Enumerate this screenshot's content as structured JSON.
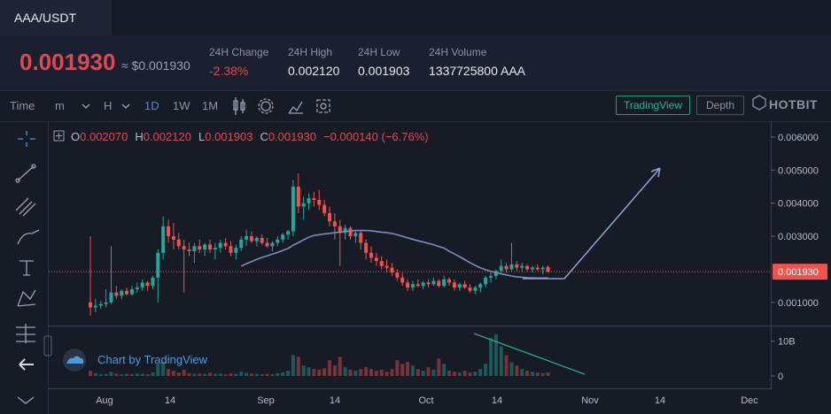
{
  "tab": "AAA/USDT",
  "ticker": {
    "last": "0.001930",
    "usd": "≈ $0.001930"
  },
  "stats": [
    {
      "label": "24H Change",
      "value": "-2.38%"
    },
    {
      "label": "24H High",
      "value": "0.002120"
    },
    {
      "label": "24H Low",
      "value": "0.001903"
    },
    {
      "label": "24H Volume",
      "value": "1337725800 AAA"
    }
  ],
  "toolbar": {
    "items": [
      "Time",
      "m",
      "H",
      "1D",
      "1W",
      "1M"
    ],
    "buttons": [
      "TradingView",
      "Depth"
    ],
    "logo": "HOTBIT"
  },
  "legend": [
    {
      "label": "O",
      "value": "0.002070"
    },
    {
      "label": "H",
      "value": "0.002120"
    },
    {
      "label": "L",
      "value": "0.001903"
    },
    {
      "label": "C",
      "value": "0.001930"
    },
    {
      "label": "",
      "value": "−0.000140 (−6.76%)"
    }
  ],
  "watermark": "Chart by TradingView",
  "chart_data": {
    "type": "candlestick",
    "up_color": "#26a69a",
    "down_color": "#ef5350",
    "x_labels": [
      "Aug",
      "14",
      "Sep",
      "14",
      "Oct",
      "14",
      "Nov",
      "14",
      "Dec"
    ],
    "ylim": [
      0.0003,
      0.0064
    ],
    "yticks": [
      {
        "value": 0.001,
        "label": "0.001000"
      },
      {
        "value": 0.003,
        "label": "0.003000"
      },
      {
        "value": 0.004,
        "label": "0.004000"
      },
      {
        "value": 0.005,
        "label": "0.005000"
      },
      {
        "value": 0.006,
        "label": "0.006000"
      }
    ],
    "last_price": {
      "value": 0.00193,
      "label": "0.001930"
    },
    "volume_ylim": [
      0,
      14000000000
    ],
    "volume_ticks": [
      0,
      {
        "value": 10000000000,
        "label": "10B"
      }
    ],
    "open": [
      0.001,
      0.00085,
      0.0009,
      0.00095,
      0.001,
      0.0013,
      0.0012,
      0.00135,
      0.00125,
      0.0014,
      0.00145,
      0.0016,
      0.0015,
      0.00175,
      0.0025,
      0.0033,
      0.003,
      0.0029,
      0.0027,
      0.0026,
      0.00255,
      0.0027,
      0.0026,
      0.00275,
      0.0026,
      0.00265,
      0.0028,
      0.0027,
      0.0025,
      0.00265,
      0.0029,
      0.003,
      0.00285,
      0.00295,
      0.0028,
      0.0027,
      0.0028,
      0.0029,
      0.00305,
      0.00315,
      0.0045,
      0.0039,
      0.004,
      0.00415,
      0.0041,
      0.00395,
      0.0037,
      0.00345,
      0.0033,
      0.0031,
      0.00325,
      0.003,
      0.0031,
      0.0028,
      0.0025,
      0.00235,
      0.00225,
      0.0021,
      0.00205,
      0.0019,
      0.00175,
      0.0016,
      0.00145,
      0.00155,
      0.0015,
      0.0016,
      0.00155,
      0.00165,
      0.0015,
      0.0017,
      0.0016,
      0.00145,
      0.00155,
      0.00145,
      0.00135,
      0.00145,
      0.00155,
      0.00175,
      0.0018,
      0.00195,
      0.0021,
      0.002,
      0.00215,
      0.00205,
      0.0021,
      0.002,
      0.00205,
      0.002,
      0.00207
    ],
    "high": [
      0.003,
      0.0011,
      0.00105,
      0.0014,
      0.0027,
      0.0015,
      0.0014,
      0.00145,
      0.0015,
      0.0016,
      0.0017,
      0.00165,
      0.0018,
      0.0026,
      0.0036,
      0.0035,
      0.0034,
      0.0031,
      0.0029,
      0.0028,
      0.0028,
      0.0029,
      0.0028,
      0.0029,
      0.0028,
      0.0029,
      0.00295,
      0.00285,
      0.00275,
      0.003,
      0.0032,
      0.00315,
      0.003,
      0.00305,
      0.00295,
      0.00285,
      0.003,
      0.0031,
      0.0032,
      0.0047,
      0.0049,
      0.0042,
      0.0043,
      0.00435,
      0.0044,
      0.0041,
      0.0039,
      0.0037,
      0.0035,
      0.00335,
      0.0033,
      0.0032,
      0.00315,
      0.0029,
      0.0027,
      0.0025,
      0.0024,
      0.0023,
      0.0022,
      0.002,
      0.0019,
      0.0017,
      0.00165,
      0.0017,
      0.00165,
      0.0017,
      0.00175,
      0.0017,
      0.0018,
      0.00175,
      0.0017,
      0.0016,
      0.00165,
      0.00155,
      0.0015,
      0.0016,
      0.0018,
      0.0019,
      0.002,
      0.0023,
      0.0022,
      0.0028,
      0.00225,
      0.0022,
      0.00215,
      0.0021,
      0.00215,
      0.0021,
      0.00212
    ],
    "low": [
      0.0006,
      0.0007,
      0.0008,
      0.00085,
      0.00095,
      0.0011,
      0.0011,
      0.0012,
      0.0012,
      0.0013,
      0.00135,
      0.00135,
      0.0014,
      0.001,
      0.0023,
      0.0028,
      0.0026,
      0.0026,
      0.0013,
      0.0024,
      0.0022,
      0.0025,
      0.0024,
      0.0025,
      0.0023,
      0.0025,
      0.0026,
      0.0024,
      0.0023,
      0.00255,
      0.0027,
      0.0028,
      0.0027,
      0.00275,
      0.00265,
      0.00255,
      0.0027,
      0.0028,
      0.0029,
      0.003,
      0.0037,
      0.0035,
      0.0038,
      0.0039,
      0.0038,
      0.0036,
      0.0033,
      0.0029,
      0.0021,
      0.0029,
      0.0029,
      0.0028,
      0.0026,
      0.0023,
      0.0022,
      0.0021,
      0.002,
      0.0019,
      0.0018,
      0.00165,
      0.0015,
      0.00135,
      0.00135,
      0.00145,
      0.0014,
      0.00145,
      0.0015,
      0.00145,
      0.00145,
      0.0015,
      0.00135,
      0.00135,
      0.0014,
      0.0013,
      0.00125,
      0.0013,
      0.00145,
      0.0016,
      0.0017,
      0.00185,
      0.0019,
      0.00195,
      0.00195,
      0.00195,
      0.00195,
      0.0019,
      0.00195,
      0.00185,
      0.001903
    ],
    "close": [
      0.00085,
      0.0009,
      0.00095,
      0.001,
      0.0013,
      0.0012,
      0.00135,
      0.00125,
      0.0014,
      0.00145,
      0.0016,
      0.0015,
      0.00175,
      0.0025,
      0.0033,
      0.003,
      0.0029,
      0.0027,
      0.0026,
      0.00255,
      0.0027,
      0.0026,
      0.00275,
      0.0026,
      0.00265,
      0.0028,
      0.0027,
      0.0025,
      0.00265,
      0.0029,
      0.003,
      0.00285,
      0.00295,
      0.0028,
      0.0027,
      0.0028,
      0.0029,
      0.00305,
      0.00315,
      0.0045,
      0.0039,
      0.004,
      0.00415,
      0.0041,
      0.00395,
      0.0037,
      0.00345,
      0.0033,
      0.0031,
      0.00325,
      0.003,
      0.0031,
      0.0028,
      0.0025,
      0.00235,
      0.00225,
      0.0021,
      0.00205,
      0.0019,
      0.00175,
      0.0016,
      0.00145,
      0.00155,
      0.0015,
      0.0016,
      0.00155,
      0.00165,
      0.0015,
      0.0017,
      0.0016,
      0.00145,
      0.00155,
      0.00145,
      0.00135,
      0.00145,
      0.00155,
      0.00175,
      0.0018,
      0.00195,
      0.0021,
      0.002,
      0.00215,
      0.00205,
      0.0021,
      0.002,
      0.00205,
      0.002,
      0.00205,
      0.00193
    ],
    "volume": [
      1500000000.0,
      800000000.0,
      500000000.0,
      600000000.0,
      1200000000.0,
      700000000.0,
      500000000.0,
      600000000.0,
      500000000.0,
      700000000.0,
      600000000.0,
      500000000.0,
      1000000000.0,
      3500000000.0,
      4000000000.0,
      2000000000.0,
      1500000000.0,
      1000000000.0,
      1800000000.0,
      800000000.0,
      600000000.0,
      700000000.0,
      600000000.0,
      900000000.0,
      600000000.0,
      700000000.0,
      500000000.0,
      800000000.0,
      600000000.0,
      1200000000.0,
      900000000.0,
      700000000.0,
      600000000.0,
      500000000.0,
      600000000.0,
      500000000.0,
      800000000.0,
      1000000000.0,
      1500000000.0,
      6000000000.0,
      5500000000.0,
      3000000000.0,
      2500000000.0,
      2000000000.0,
      1800000000.0,
      2200000000.0,
      4500000000.0,
      3000000000.0,
      5500000000.0,
      2500000000.0,
      1800000000.0,
      1500000000.0,
      2000000000.0,
      2500000000.0,
      2000000000.0,
      1500000000.0,
      1800000000.0,
      1200000000.0,
      2000000000.0,
      4500000000.0,
      3500000000.0,
      4000000000.0,
      3000000000.0,
      2000000000.0,
      1500000000.0,
      2500000000.0,
      1800000000.0,
      5000000000.0,
      3500000000.0,
      1500000000.0,
      1200000000.0,
      1000000000.0,
      1500000000.0,
      1000000000.0,
      1200000000.0,
      2000000000.0,
      3500000000.0,
      11000000000.0,
      12000000000.0,
      8500000000.0,
      6000000000.0,
      4000000000.0,
      3000000000.0,
      2000000000.0,
      1500000000.0,
      1200000000.0,
      1000000000.0,
      800000000.0,
      1000000000.0
    ]
  }
}
